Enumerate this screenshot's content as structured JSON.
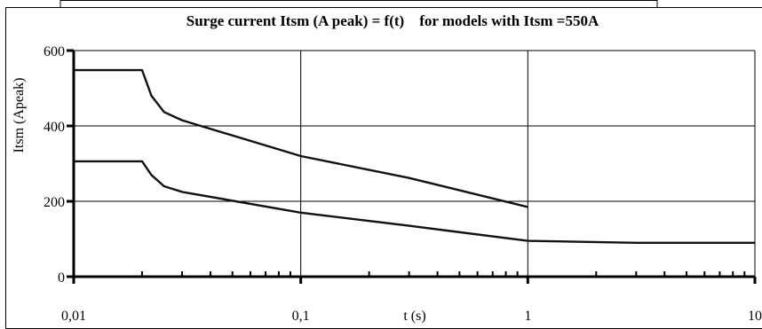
{
  "chart_data": {
    "type": "line",
    "title": "Surge current Itsm (A peak) = f(t)    for models with Itsm =550A",
    "xlabel": "t (s)",
    "ylabel": "Itsm (Apeak)",
    "xscale": "log",
    "xlim": [
      0.01,
      10
    ],
    "ylim": [
      0,
      600
    ],
    "x_tick_labels": [
      "0,01",
      "0,1",
      "1",
      "10"
    ],
    "y_tick_labels": [
      "0",
      "200",
      "400",
      "600"
    ],
    "x_ticks": [
      0.01,
      0.1,
      1,
      10
    ],
    "y_ticks": [
      0,
      200,
      400,
      600
    ],
    "grid": true,
    "series": [
      {
        "x": [
          0.01,
          0.02,
          0.022,
          0.025,
          0.03,
          0.1,
          0.3,
          1
        ],
        "y": [
          548,
          548,
          480,
          437,
          415,
          320,
          262,
          185
        ],
        "color": "#111111"
      },
      {
        "x": [
          0.01,
          0.02,
          0.022,
          0.025,
          0.03,
          0.1,
          0.3,
          1,
          3,
          10
        ],
        "y": [
          306,
          306,
          270,
          240,
          225,
          170,
          135,
          95,
          90,
          90
        ],
        "color": "#111111"
      }
    ]
  }
}
